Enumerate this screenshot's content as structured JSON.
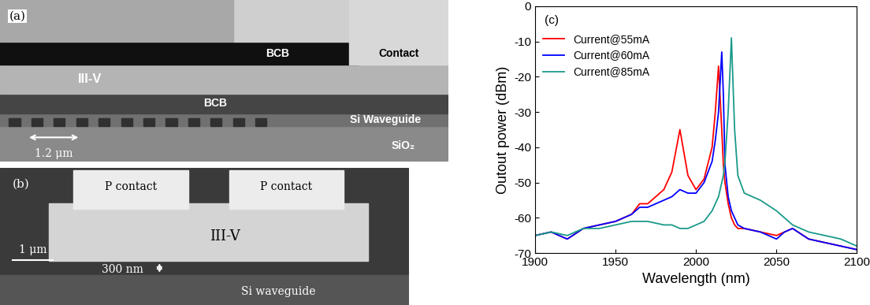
{
  "chart_data": {
    "type": "line",
    "label": "(c)",
    "x_label": "Wavelength (nm)",
    "y_label": "Outout power (dBm)",
    "x": [
      1900,
      1910,
      1920,
      1930,
      1940,
      1950,
      1960,
      1965,
      1970,
      1980,
      1985,
      1990,
      1995,
      2000,
      2005,
      2010,
      2012,
      2014,
      2016,
      2017,
      2018,
      2020,
      2022,
      2024,
      2026,
      2030,
      2040,
      2050,
      2055,
      2060,
      2070,
      2080,
      2090,
      2100
    ],
    "series": [
      {
        "name": "Current@55mA",
        "color": "#ff0000",
        "values": [
          -65,
          -64,
          -66,
          -63,
          -62,
          -61,
          -59,
          -56,
          -56,
          -52,
          -47,
          -35,
          -48,
          -52,
          -49,
          -40,
          -30,
          -17,
          -35,
          -45,
          -50,
          -56,
          -60,
          -62,
          -63,
          -63,
          -64,
          -65,
          -64,
          -63,
          -66,
          -67,
          -68,
          -69
        ]
      },
      {
        "name": "Current@60mA",
        "color": "#0000ff",
        "values": [
          -65,
          -64,
          -66,
          -63,
          -62,
          -61,
          -59,
          -57,
          -57,
          -55,
          -54,
          -52,
          -53,
          -53,
          -50,
          -44,
          -38,
          -30,
          -13,
          -25,
          -45,
          -54,
          -58,
          -60,
          -62,
          -63,
          -64,
          -66,
          -64,
          -63,
          -66,
          -67,
          -68,
          -69
        ]
      },
      {
        "name": "Current@85mA",
        "color": "#1a9a8a",
        "values": [
          -65,
          -64,
          -65,
          -63,
          -63,
          -62,
          -61,
          -61,
          -61,
          -62,
          -62,
          -63,
          -63,
          -62,
          -61,
          -58,
          -56,
          -54,
          -50,
          -48,
          -44,
          -30,
          -9,
          -35,
          -48,
          -53,
          -55,
          -58,
          -60,
          -62,
          -64,
          -65,
          -66,
          -68
        ]
      }
    ],
    "xlim": [
      1900,
      2100
    ],
    "xticks": [
      1900,
      1950,
      2000,
      2050,
      2100
    ],
    "ylim": [
      -70,
      0
    ],
    "yticks": [
      -70,
      -60,
      -50,
      -40,
      -30,
      -20,
      -10,
      0
    ],
    "grid": false,
    "legend": "upper left",
    "line_style": "solid",
    "marker": "none"
  },
  "image_a": {
    "label": "(a)",
    "top_bcb": "BCB",
    "contact": "Contact",
    "iii_v": "III-V",
    "bonding_bcb": "BCB",
    "waveguide": "Si Waveguide",
    "substrate": "SiO₂",
    "scale_bar": "1.2 μm"
  },
  "image_b": {
    "label": "(b)",
    "contacts": [
      "P contact",
      "P contact"
    ],
    "iii_v": "III-V",
    "scale_bar": "1 μm",
    "gap": "300 nm",
    "waveguide": "Si waveguide"
  }
}
